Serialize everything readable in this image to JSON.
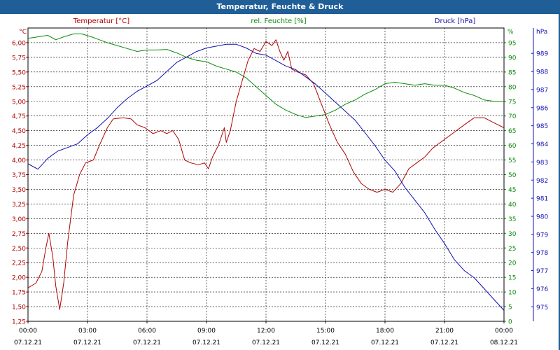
{
  "window": {
    "title": "Temperatur, Feuchte & Druck"
  },
  "colors": {
    "temperature": "#b00000",
    "humidity": "#0a8a0a",
    "pressure": "#1010b0",
    "titlebar": "#1f5e96"
  },
  "chart_data": {
    "type": "line",
    "grid": true,
    "x_ticks": [
      {
        "time": "00:00",
        "date": "07.12.21"
      },
      {
        "time": "03:00",
        "date": "07.12.21"
      },
      {
        "time": "06:00",
        "date": "07.12.21"
      },
      {
        "time": "09:00",
        "date": "07.12.21"
      },
      {
        "time": "12:00",
        "date": "07.12.21"
      },
      {
        "time": "15:00",
        "date": "07.12.21"
      },
      {
        "time": "18:00",
        "date": "07.12.21"
      },
      {
        "time": "21:00",
        "date": "07.12.21"
      },
      {
        "time": "00:00",
        "date": "08.12.21"
      }
    ],
    "x_range_hours": [
      0,
      24
    ],
    "axes": {
      "temperature": {
        "label": "Temperatur [°C]",
        "unit": "°C",
        "range": [
          1.25,
          6.25
        ],
        "ticks": [
          "1,25",
          "1,50",
          "1,75",
          "2,00",
          "2,25",
          "2,50",
          "2,75",
          "3,00",
          "3,25",
          "3,50",
          "3,75",
          "4,00",
          "4,25",
          "4,50",
          "4,75",
          "5,00",
          "5,25",
          "5,50",
          "5,75",
          "6,00"
        ]
      },
      "humidity": {
        "label": "rel. Feuchte [%]",
        "unit": "%",
        "range": [
          0,
          100
        ],
        "ticks": [
          "0",
          "5",
          "10",
          "15",
          "20",
          "25",
          "30",
          "35",
          "40",
          "45",
          "50",
          "55",
          "60",
          "65",
          "70",
          "75",
          "80",
          "85",
          "90",
          "95"
        ]
      },
      "pressure": {
        "label": "Druck [hPa]",
        "unit": "hPa",
        "range": [
          974.2,
          990.4
        ],
        "ticks": [
          "975",
          "976",
          "977",
          "978",
          "979",
          "980",
          "981",
          "982",
          "983",
          "984",
          "985",
          "986",
          "987",
          "988",
          "989"
        ]
      }
    },
    "series": [
      {
        "name": "Temperatur [°C]",
        "axis": "temperature",
        "color": "#b00000",
        "points": [
          [
            0,
            1.82
          ],
          [
            0.4,
            1.9
          ],
          [
            0.7,
            2.1
          ],
          [
            0.9,
            2.5
          ],
          [
            1.05,
            2.75
          ],
          [
            1.25,
            2.35
          ],
          [
            1.4,
            1.85
          ],
          [
            1.6,
            1.45
          ],
          [
            1.8,
            1.9
          ],
          [
            2.0,
            2.6
          ],
          [
            2.3,
            3.4
          ],
          [
            2.6,
            3.75
          ],
          [
            2.9,
            3.95
          ],
          [
            3.3,
            4.0
          ],
          [
            3.6,
            4.25
          ],
          [
            4.0,
            4.55
          ],
          [
            4.3,
            4.7
          ],
          [
            4.8,
            4.72
          ],
          [
            5.2,
            4.7
          ],
          [
            5.5,
            4.6
          ],
          [
            5.9,
            4.55
          ],
          [
            6.3,
            4.45
          ],
          [
            6.7,
            4.5
          ],
          [
            7.0,
            4.45
          ],
          [
            7.3,
            4.5
          ],
          [
            7.6,
            4.35
          ],
          [
            7.9,
            4.0
          ],
          [
            8.2,
            3.95
          ],
          [
            8.6,
            3.92
          ],
          [
            8.9,
            3.95
          ],
          [
            9.1,
            3.85
          ],
          [
            9.3,
            4.05
          ],
          [
            9.6,
            4.25
          ],
          [
            9.9,
            4.55
          ],
          [
            10.0,
            4.3
          ],
          [
            10.2,
            4.5
          ],
          [
            10.5,
            5.0
          ],
          [
            10.8,
            5.35
          ],
          [
            11.1,
            5.7
          ],
          [
            11.4,
            5.9
          ],
          [
            11.7,
            5.85
          ],
          [
            12.0,
            6.02
          ],
          [
            12.3,
            5.95
          ],
          [
            12.5,
            6.05
          ],
          [
            12.7,
            5.85
          ],
          [
            12.9,
            5.7
          ],
          [
            13.1,
            5.85
          ],
          [
            13.3,
            5.55
          ],
          [
            13.6,
            5.5
          ],
          [
            14.0,
            5.45
          ],
          [
            14.4,
            5.3
          ],
          [
            14.8,
            4.95
          ],
          [
            15.2,
            4.6
          ],
          [
            15.6,
            4.3
          ],
          [
            16.0,
            4.1
          ],
          [
            16.4,
            3.8
          ],
          [
            16.8,
            3.6
          ],
          [
            17.2,
            3.5
          ],
          [
            17.6,
            3.45
          ],
          [
            18.0,
            3.5
          ],
          [
            18.4,
            3.45
          ],
          [
            18.8,
            3.6
          ],
          [
            19.2,
            3.85
          ],
          [
            19.6,
            3.95
          ],
          [
            20.0,
            4.05
          ],
          [
            20.4,
            4.2
          ],
          [
            20.8,
            4.3
          ],
          [
            21.2,
            4.4
          ],
          [
            21.6,
            4.5
          ],
          [
            22.0,
            4.6
          ],
          [
            22.5,
            4.72
          ],
          [
            23.0,
            4.72
          ],
          [
            23.4,
            4.65
          ],
          [
            23.7,
            4.6
          ],
          [
            24.0,
            4.55
          ]
        ]
      },
      {
        "name": "rel. Feuchte [%]",
        "axis": "humidity",
        "color": "#0a8a0a",
        "points": [
          [
            0,
            96.5
          ],
          [
            0.5,
            97
          ],
          [
            1.0,
            97.5
          ],
          [
            1.4,
            96
          ],
          [
            1.8,
            97
          ],
          [
            2.3,
            98
          ],
          [
            2.7,
            98
          ],
          [
            3.2,
            97
          ],
          [
            3.6,
            96
          ],
          [
            4.0,
            95
          ],
          [
            4.5,
            94
          ],
          [
            5.0,
            93
          ],
          [
            5.5,
            92
          ],
          [
            6.0,
            92.5
          ],
          [
            6.5,
            92.5
          ],
          [
            7.0,
            92.7
          ],
          [
            7.5,
            91.5
          ],
          [
            8.0,
            90
          ],
          [
            8.5,
            89
          ],
          [
            9.0,
            88.5
          ],
          [
            9.5,
            87
          ],
          [
            10.0,
            86
          ],
          [
            10.5,
            85
          ],
          [
            11.0,
            83
          ],
          [
            11.5,
            80
          ],
          [
            12.0,
            77
          ],
          [
            12.5,
            74
          ],
          [
            13.0,
            72
          ],
          [
            13.5,
            70.5
          ],
          [
            14.0,
            69.5
          ],
          [
            14.5,
            70
          ],
          [
            15.0,
            70.5
          ],
          [
            15.5,
            72
          ],
          [
            16.0,
            74
          ],
          [
            16.5,
            75.5
          ],
          [
            17.0,
            77.5
          ],
          [
            17.5,
            79
          ],
          [
            18.0,
            81
          ],
          [
            18.5,
            81.5
          ],
          [
            19.0,
            81
          ],
          [
            19.5,
            80.5
          ],
          [
            20.0,
            81
          ],
          [
            20.5,
            80.5
          ],
          [
            21.0,
            80.5
          ],
          [
            21.5,
            79.5
          ],
          [
            22.0,
            78
          ],
          [
            22.5,
            77
          ],
          [
            23.0,
            75.5
          ],
          [
            23.5,
            75
          ],
          [
            24.0,
            75
          ]
        ]
      },
      {
        "name": "Druck [hPa]",
        "axis": "pressure",
        "color": "#1010b0",
        "points": [
          [
            0,
            982.9
          ],
          [
            0.5,
            982.6
          ],
          [
            1.0,
            983.2
          ],
          [
            1.5,
            983.6
          ],
          [
            2.0,
            983.8
          ],
          [
            2.5,
            984.0
          ],
          [
            3.0,
            984.5
          ],
          [
            3.5,
            984.9
          ],
          [
            4.0,
            985.4
          ],
          [
            4.5,
            986.0
          ],
          [
            5.0,
            986.5
          ],
          [
            5.5,
            986.9
          ],
          [
            6.0,
            987.2
          ],
          [
            6.5,
            987.5
          ],
          [
            7.0,
            988.0
          ],
          [
            7.5,
            988.5
          ],
          [
            8.0,
            988.8
          ],
          [
            8.5,
            989.1
          ],
          [
            9.0,
            989.3
          ],
          [
            9.5,
            989.4
          ],
          [
            10.0,
            989.5
          ],
          [
            10.5,
            989.5
          ],
          [
            11.0,
            989.3
          ],
          [
            11.5,
            989.0
          ],
          [
            12.0,
            988.9
          ],
          [
            12.5,
            988.6
          ],
          [
            13.0,
            988.3
          ],
          [
            13.5,
            988.1
          ],
          [
            14.0,
            987.7
          ],
          [
            14.5,
            987.3
          ],
          [
            15.0,
            986.8
          ],
          [
            15.5,
            986.3
          ],
          [
            16.0,
            985.8
          ],
          [
            16.5,
            985.3
          ],
          [
            17.0,
            984.6
          ],
          [
            17.5,
            983.9
          ],
          [
            18.0,
            983.1
          ],
          [
            18.5,
            982.5
          ],
          [
            19.0,
            981.6
          ],
          [
            19.5,
            980.9
          ],
          [
            20.0,
            980.2
          ],
          [
            20.5,
            979.3
          ],
          [
            21.0,
            978.5
          ],
          [
            21.5,
            977.6
          ],
          [
            22.0,
            977.0
          ],
          [
            22.5,
            976.6
          ],
          [
            23.0,
            976.0
          ],
          [
            23.5,
            975.4
          ],
          [
            24.0,
            974.8
          ]
        ]
      }
    ]
  }
}
